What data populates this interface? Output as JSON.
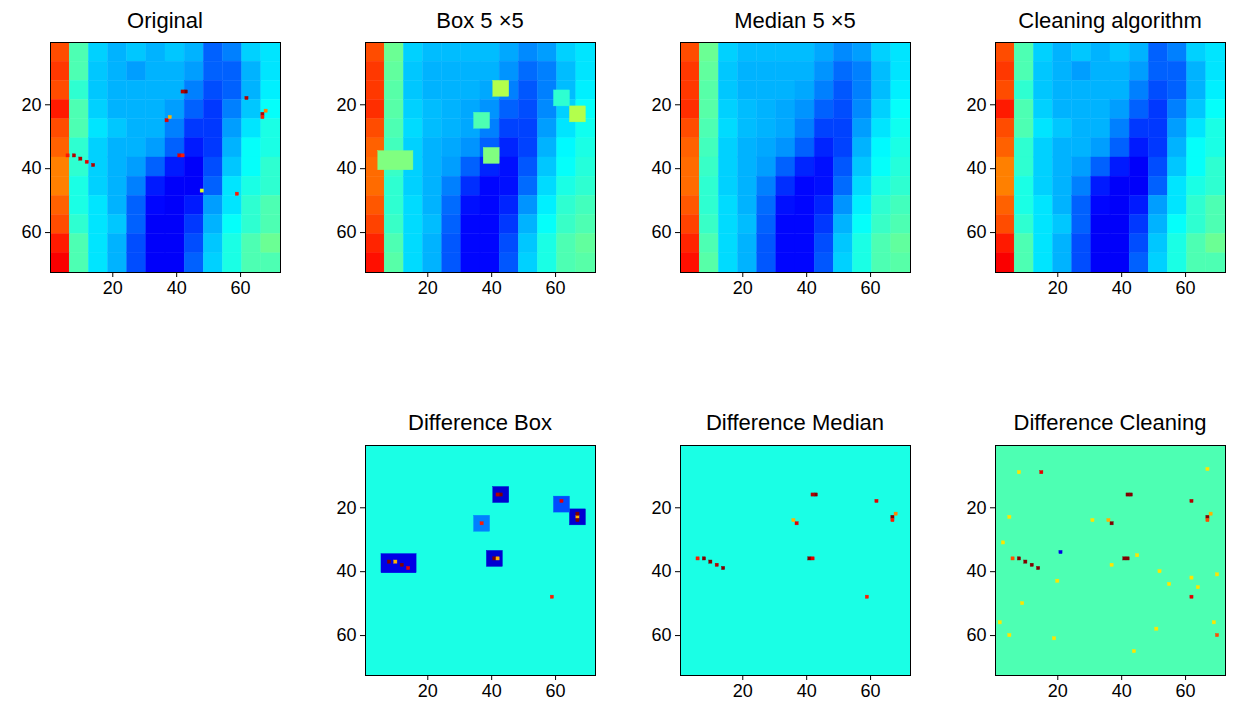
{
  "chart_data": [
    {
      "type": "heatmap",
      "title": "Original",
      "color": "jet",
      "color_range": [
        0,
        1
      ],
      "xlim": [
        0.5,
        72.5
      ],
      "ylim": [
        0.5,
        72.5
      ],
      "xticks": [
        20,
        40,
        60
      ],
      "yticks": [
        20,
        40,
        60
      ],
      "cells": [
        [
          0.8,
          0.45,
          0.33,
          0.3,
          0.32,
          0.3,
          0.32,
          0.3,
          0.22,
          0.25,
          0.33,
          0.35
        ],
        [
          0.82,
          0.45,
          0.32,
          0.3,
          0.28,
          0.3,
          0.3,
          0.28,
          0.22,
          0.22,
          0.3,
          0.35
        ],
        [
          0.8,
          0.42,
          0.32,
          0.3,
          0.3,
          0.3,
          0.3,
          0.25,
          0.2,
          0.22,
          0.3,
          0.36
        ],
        [
          0.85,
          0.45,
          0.33,
          0.3,
          0.3,
          0.3,
          0.28,
          0.22,
          0.18,
          0.25,
          0.32,
          0.38
        ],
        [
          0.8,
          0.45,
          0.35,
          0.32,
          0.3,
          0.3,
          0.25,
          0.18,
          0.18,
          0.28,
          0.35,
          0.4
        ],
        [
          0.78,
          0.42,
          0.33,
          0.3,
          0.3,
          0.28,
          0.22,
          0.15,
          0.18,
          0.3,
          0.38,
          0.4
        ],
        [
          0.75,
          0.42,
          0.33,
          0.3,
          0.28,
          0.22,
          0.15,
          0.12,
          0.2,
          0.32,
          0.38,
          0.42
        ],
        [
          0.75,
          0.4,
          0.33,
          0.3,
          0.25,
          0.15,
          0.12,
          0.12,
          0.22,
          0.35,
          0.4,
          0.42
        ],
        [
          0.78,
          0.4,
          0.35,
          0.3,
          0.22,
          0.13,
          0.12,
          0.15,
          0.28,
          0.35,
          0.42,
          0.45
        ],
        [
          0.8,
          0.42,
          0.35,
          0.32,
          0.22,
          0.12,
          0.12,
          0.18,
          0.3,
          0.38,
          0.42,
          0.45
        ],
        [
          0.85,
          0.45,
          0.35,
          0.3,
          0.2,
          0.12,
          0.12,
          0.2,
          0.32,
          0.4,
          0.45,
          0.48
        ],
        [
          0.88,
          0.45,
          0.35,
          0.3,
          0.2,
          0.12,
          0.12,
          0.22,
          0.33,
          0.4,
          0.45,
          0.45
        ]
      ],
      "spots": [
        [
          43,
          16,
          1.0
        ],
        [
          42,
          16,
          0.95
        ],
        [
          37,
          25,
          0.9
        ],
        [
          38,
          24,
          0.7
        ],
        [
          62,
          18,
          0.95
        ],
        [
          67,
          23,
          0.95
        ],
        [
          68,
          22,
          0.75
        ],
        [
          67,
          24,
          0.85
        ],
        [
          41,
          36,
          0.9
        ],
        [
          42,
          36,
          0.85
        ],
        [
          6,
          36,
          0.85
        ],
        [
          8,
          36,
          0.95
        ],
        [
          10,
          37,
          0.95
        ],
        [
          12,
          38,
          0.9
        ],
        [
          14,
          39,
          0.95
        ],
        [
          59,
          48,
          0.85
        ],
        [
          48,
          47,
          0.6
        ]
      ]
    },
    {
      "type": "heatmap",
      "title": "Box 5 ×5",
      "color": "jet",
      "color_range": [
        0,
        1
      ],
      "xlim": [
        0.5,
        72.5
      ],
      "ylim": [
        0.5,
        72.5
      ],
      "xticks": [
        20,
        40,
        60
      ],
      "yticks": [
        20,
        40,
        60
      ],
      "cells": [
        [
          0.8,
          0.48,
          0.33,
          0.31,
          0.31,
          0.31,
          0.31,
          0.29,
          0.26,
          0.28,
          0.33,
          0.35
        ],
        [
          0.82,
          0.47,
          0.32,
          0.3,
          0.3,
          0.3,
          0.3,
          0.27,
          0.23,
          0.25,
          0.31,
          0.35
        ],
        [
          0.82,
          0.46,
          0.32,
          0.3,
          0.3,
          0.3,
          0.29,
          0.25,
          0.21,
          0.25,
          0.31,
          0.36
        ],
        [
          0.83,
          0.46,
          0.33,
          0.31,
          0.3,
          0.29,
          0.27,
          0.22,
          0.2,
          0.26,
          0.33,
          0.38
        ],
        [
          0.8,
          0.45,
          0.34,
          0.31,
          0.3,
          0.29,
          0.25,
          0.19,
          0.19,
          0.28,
          0.35,
          0.39
        ],
        [
          0.78,
          0.44,
          0.33,
          0.3,
          0.29,
          0.27,
          0.22,
          0.16,
          0.19,
          0.3,
          0.37,
          0.4
        ],
        [
          0.77,
          0.43,
          0.33,
          0.3,
          0.28,
          0.22,
          0.16,
          0.14,
          0.21,
          0.32,
          0.38,
          0.41
        ],
        [
          0.77,
          0.42,
          0.33,
          0.3,
          0.25,
          0.17,
          0.13,
          0.14,
          0.23,
          0.34,
          0.4,
          0.42
        ],
        [
          0.79,
          0.42,
          0.34,
          0.3,
          0.23,
          0.14,
          0.13,
          0.16,
          0.27,
          0.36,
          0.42,
          0.44
        ],
        [
          0.81,
          0.43,
          0.34,
          0.31,
          0.22,
          0.13,
          0.13,
          0.18,
          0.3,
          0.38,
          0.43,
          0.45
        ],
        [
          0.84,
          0.45,
          0.34,
          0.3,
          0.21,
          0.13,
          0.13,
          0.2,
          0.32,
          0.4,
          0.45,
          0.47
        ],
        [
          0.86,
          0.46,
          0.34,
          0.3,
          0.21,
          0.13,
          0.13,
          0.21,
          0.33,
          0.4,
          0.45,
          0.46
        ]
      ],
      "patches": [
        [
          40.5,
          45.5,
          12.5,
          17.5,
          0.55
        ],
        [
          64.5,
          69.5,
          20.5,
          25.5,
          0.55
        ],
        [
          37.5,
          42.5,
          33.5,
          38.5,
          0.5
        ],
        [
          34.5,
          39.5,
          22.5,
          27.5,
          0.45
        ],
        [
          59.5,
          64.5,
          15.5,
          20.5,
          0.42
        ],
        [
          4.5,
          15.5,
          34.5,
          40.5,
          0.5
        ]
      ]
    },
    {
      "type": "heatmap",
      "title": "Median 5 ×5",
      "color": "jet",
      "color_range": [
        0,
        1
      ],
      "xlim": [
        0.5,
        72.5
      ],
      "ylim": [
        0.5,
        72.5
      ],
      "xticks": [
        20,
        40,
        60
      ],
      "yticks": [
        20,
        40,
        60
      ],
      "cells": [
        [
          0.8,
          0.48,
          0.33,
          0.31,
          0.31,
          0.31,
          0.31,
          0.29,
          0.26,
          0.28,
          0.33,
          0.35
        ],
        [
          0.82,
          0.47,
          0.32,
          0.3,
          0.3,
          0.3,
          0.3,
          0.27,
          0.23,
          0.25,
          0.31,
          0.35
        ],
        [
          0.82,
          0.46,
          0.32,
          0.3,
          0.3,
          0.3,
          0.29,
          0.25,
          0.21,
          0.25,
          0.31,
          0.36
        ],
        [
          0.83,
          0.46,
          0.33,
          0.31,
          0.3,
          0.29,
          0.27,
          0.22,
          0.2,
          0.26,
          0.33,
          0.38
        ],
        [
          0.8,
          0.45,
          0.34,
          0.31,
          0.3,
          0.29,
          0.25,
          0.19,
          0.19,
          0.28,
          0.35,
          0.39
        ],
        [
          0.78,
          0.44,
          0.33,
          0.3,
          0.29,
          0.27,
          0.22,
          0.16,
          0.19,
          0.3,
          0.37,
          0.4
        ],
        [
          0.77,
          0.43,
          0.33,
          0.3,
          0.28,
          0.22,
          0.16,
          0.14,
          0.21,
          0.32,
          0.38,
          0.41
        ],
        [
          0.77,
          0.42,
          0.33,
          0.3,
          0.25,
          0.17,
          0.13,
          0.14,
          0.23,
          0.34,
          0.4,
          0.42
        ],
        [
          0.79,
          0.42,
          0.34,
          0.3,
          0.23,
          0.14,
          0.13,
          0.16,
          0.27,
          0.36,
          0.42,
          0.44
        ],
        [
          0.81,
          0.43,
          0.34,
          0.31,
          0.22,
          0.13,
          0.13,
          0.18,
          0.3,
          0.38,
          0.43,
          0.45
        ],
        [
          0.84,
          0.45,
          0.34,
          0.3,
          0.21,
          0.13,
          0.13,
          0.2,
          0.32,
          0.4,
          0.45,
          0.47
        ],
        [
          0.86,
          0.46,
          0.34,
          0.3,
          0.21,
          0.13,
          0.13,
          0.21,
          0.33,
          0.4,
          0.45,
          0.46
        ]
      ]
    },
    {
      "type": "heatmap",
      "title": "Cleaning algorithm",
      "color": "jet",
      "color_range": [
        0,
        1
      ],
      "xlim": [
        0.5,
        72.5
      ],
      "ylim": [
        0.5,
        72.5
      ],
      "xticks": [
        20,
        40,
        60
      ],
      "yticks": [
        20,
        40,
        60
      ],
      "cells": [
        [
          0.8,
          0.45,
          0.33,
          0.3,
          0.32,
          0.3,
          0.32,
          0.3,
          0.22,
          0.25,
          0.33,
          0.35
        ],
        [
          0.82,
          0.45,
          0.32,
          0.3,
          0.28,
          0.3,
          0.3,
          0.28,
          0.22,
          0.22,
          0.3,
          0.35
        ],
        [
          0.8,
          0.42,
          0.32,
          0.3,
          0.3,
          0.3,
          0.3,
          0.25,
          0.2,
          0.22,
          0.3,
          0.36
        ],
        [
          0.85,
          0.45,
          0.33,
          0.3,
          0.3,
          0.3,
          0.28,
          0.22,
          0.18,
          0.25,
          0.32,
          0.38
        ],
        [
          0.8,
          0.45,
          0.35,
          0.32,
          0.3,
          0.3,
          0.25,
          0.18,
          0.18,
          0.28,
          0.35,
          0.4
        ],
        [
          0.78,
          0.42,
          0.33,
          0.3,
          0.3,
          0.28,
          0.22,
          0.15,
          0.18,
          0.3,
          0.38,
          0.4
        ],
        [
          0.75,
          0.42,
          0.33,
          0.3,
          0.28,
          0.22,
          0.15,
          0.12,
          0.2,
          0.32,
          0.38,
          0.42
        ],
        [
          0.75,
          0.4,
          0.33,
          0.3,
          0.25,
          0.15,
          0.12,
          0.12,
          0.22,
          0.35,
          0.4,
          0.42
        ],
        [
          0.78,
          0.4,
          0.35,
          0.3,
          0.22,
          0.13,
          0.12,
          0.15,
          0.28,
          0.35,
          0.42,
          0.45
        ],
        [
          0.8,
          0.42,
          0.35,
          0.32,
          0.22,
          0.12,
          0.12,
          0.18,
          0.3,
          0.38,
          0.42,
          0.45
        ],
        [
          0.85,
          0.45,
          0.35,
          0.3,
          0.2,
          0.12,
          0.12,
          0.2,
          0.32,
          0.4,
          0.45,
          0.48
        ],
        [
          0.88,
          0.45,
          0.35,
          0.3,
          0.2,
          0.12,
          0.12,
          0.22,
          0.33,
          0.4,
          0.45,
          0.45
        ]
      ]
    },
    {
      "type": "heatmap",
      "title": "Difference Box",
      "color": "jet",
      "color_range": [
        0,
        1
      ],
      "xlim": [
        0.5,
        72.5
      ],
      "ylim": [
        0.5,
        72.5
      ],
      "xticks": [
        20,
        40,
        60
      ],
      "yticks": [
        20,
        40,
        60
      ],
      "background": 0.4,
      "patches": [
        [
          40.5,
          45.5,
          13.5,
          18.5,
          0.08
        ],
        [
          64.5,
          69.5,
          20.5,
          25.5,
          0.08
        ],
        [
          38.5,
          43.5,
          33.5,
          38.5,
          0.08
        ],
        [
          5.5,
          16.5,
          34.5,
          40.5,
          0.1
        ],
        [
          59.5,
          64.5,
          16.5,
          21.5,
          0.2
        ],
        [
          34.5,
          39.5,
          22.5,
          27.5,
          0.25
        ]
      ],
      "spots": [
        [
          43,
          16,
          1.0
        ],
        [
          42,
          16,
          0.95
        ],
        [
          37,
          25,
          0.85
        ],
        [
          62,
          18,
          0.9
        ],
        [
          67,
          23,
          0.7
        ],
        [
          67,
          22,
          1.0
        ],
        [
          67,
          24,
          1.0
        ],
        [
          41,
          36,
          1.0
        ],
        [
          42,
          36,
          0.7
        ],
        [
          8,
          37,
          1.0
        ],
        [
          10,
          37,
          0.7
        ],
        [
          12,
          38,
          1.0
        ],
        [
          14,
          39,
          0.9
        ],
        [
          59,
          48,
          0.85
        ]
      ]
    },
    {
      "type": "heatmap",
      "title": "Difference Median",
      "color": "jet",
      "color_range": [
        0,
        1
      ],
      "xlim": [
        0.5,
        72.5
      ],
      "ylim": [
        0.5,
        72.5
      ],
      "xticks": [
        20,
        40,
        60
      ],
      "yticks": [
        20,
        40,
        60
      ],
      "background": 0.4,
      "spots": [
        [
          43,
          16,
          1.0
        ],
        [
          42,
          16,
          0.95
        ],
        [
          37,
          25,
          0.9
        ],
        [
          36,
          24,
          0.7
        ],
        [
          62,
          18,
          0.9
        ],
        [
          67,
          23,
          1.0
        ],
        [
          68,
          22,
          0.75
        ],
        [
          67,
          24,
          0.85
        ],
        [
          41,
          36,
          1.0
        ],
        [
          42,
          36,
          0.9
        ],
        [
          6,
          36,
          0.85
        ],
        [
          8,
          36,
          1.0
        ],
        [
          10,
          37,
          1.0
        ],
        [
          12,
          38,
          0.95
        ],
        [
          14,
          39,
          1.0
        ],
        [
          59,
          48,
          0.85
        ]
      ]
    },
    {
      "type": "heatmap",
      "title": "Difference Cleaning",
      "color": "jet",
      "color_range": [
        0,
        1
      ],
      "xlim": [
        0.5,
        72.5
      ],
      "ylim": [
        0.5,
        72.5
      ],
      "xticks": [
        20,
        40,
        60
      ],
      "yticks": [
        20,
        40,
        60
      ],
      "background": 0.45,
      "spots": [
        [
          43,
          16,
          1.0
        ],
        [
          42,
          16,
          1.0
        ],
        [
          37,
          25,
          1.0
        ],
        [
          36,
          24,
          0.7
        ],
        [
          62,
          18,
          0.95
        ],
        [
          67,
          23,
          1.0
        ],
        [
          68,
          22,
          0.7
        ],
        [
          67,
          24,
          0.8
        ],
        [
          41,
          36,
          1.0
        ],
        [
          42,
          36,
          1.0
        ],
        [
          6,
          36,
          0.8
        ],
        [
          8,
          36,
          1.0
        ],
        [
          10,
          37,
          1.0
        ],
        [
          12,
          38,
          1.0
        ],
        [
          14,
          39,
          1.0
        ],
        [
          15,
          9,
          0.9
        ],
        [
          8,
          9,
          0.65
        ],
        [
          5,
          23,
          0.65
        ],
        [
          3,
          31,
          0.65
        ],
        [
          2,
          56,
          0.65
        ],
        [
          5,
          60,
          0.65
        ],
        [
          9,
          50,
          0.65
        ],
        [
          20,
          43,
          0.65
        ],
        [
          19,
          61,
          0.65
        ],
        [
          37,
          38,
          0.65
        ],
        [
          45,
          35,
          0.65
        ],
        [
          52,
          40,
          0.65
        ],
        [
          55,
          44,
          0.65
        ],
        [
          62,
          42,
          0.65
        ],
        [
          64,
          45,
          0.65
        ],
        [
          70,
          41,
          0.65
        ],
        [
          69,
          56,
          0.65
        ],
        [
          70,
          60,
          0.8
        ],
        [
          62,
          48,
          0.9
        ],
        [
          21,
          34,
          0.1
        ],
        [
          51,
          58,
          0.65
        ],
        [
          44,
          65,
          0.65
        ],
        [
          67,
          8,
          0.65
        ],
        [
          31,
          24,
          0.65
        ]
      ]
    }
  ]
}
